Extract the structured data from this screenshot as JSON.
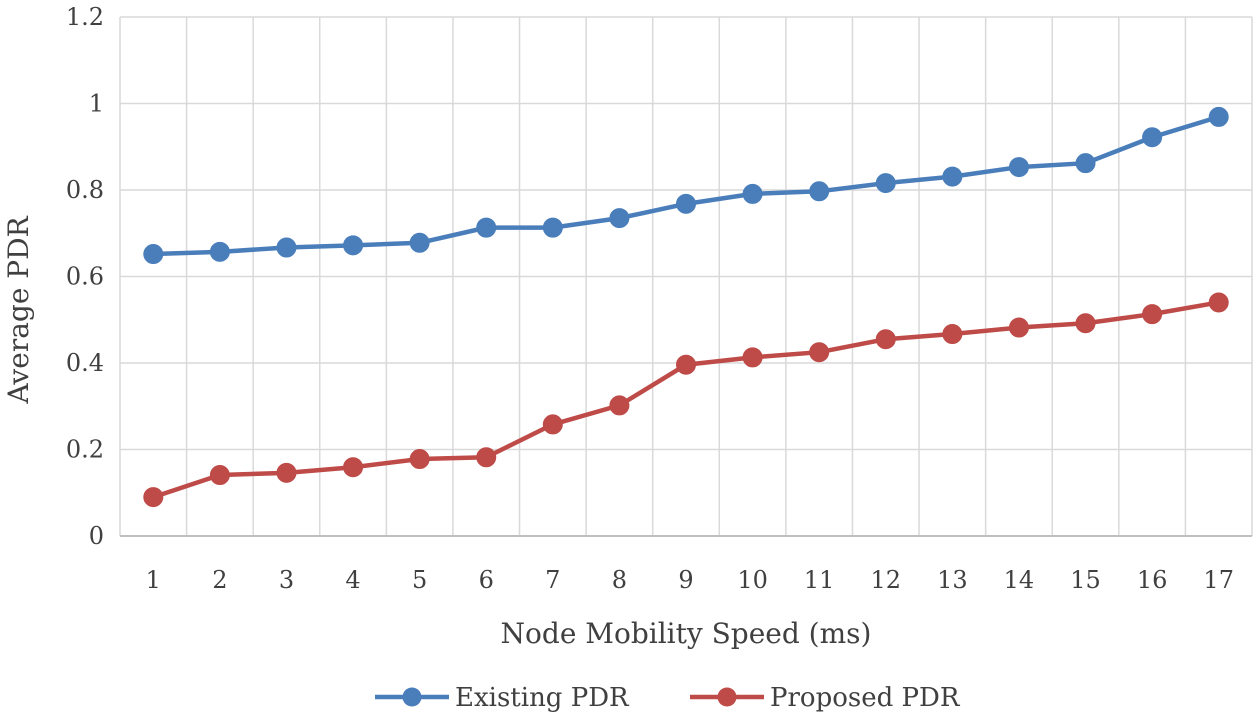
{
  "chart_data": {
    "type": "line",
    "title": "",
    "xlabel": "Node Mobility Speed (ms)",
    "ylabel": "Average PDR",
    "categories": [
      "1",
      "2",
      "3",
      "4",
      "5",
      "6",
      "7",
      "8",
      "9",
      "10",
      "11",
      "12",
      "13",
      "14",
      "15",
      "16",
      "17"
    ],
    "yticks": [
      "0",
      "0.2",
      "0.4",
      "0.6",
      "0.8",
      "1",
      "1.2"
    ],
    "ylim": [
      0,
      1.2
    ],
    "grid": true,
    "legend": "bottom-center",
    "series": [
      {
        "name": "Existing PDR",
        "color": "#4a7ebb",
        "values": [
          0.652,
          0.657,
          0.667,
          0.672,
          0.678,
          0.713,
          0.713,
          0.735,
          0.768,
          0.791,
          0.797,
          0.816,
          0.831,
          0.853,
          0.862,
          0.922,
          0.969
        ]
      },
      {
        "name": "Proposed PDR",
        "color": "#be4b48",
        "values": [
          0.09,
          0.141,
          0.146,
          0.159,
          0.178,
          0.182,
          0.258,
          0.302,
          0.396,
          0.413,
          0.425,
          0.455,
          0.467,
          0.482,
          0.492,
          0.513,
          0.54
        ]
      }
    ]
  }
}
